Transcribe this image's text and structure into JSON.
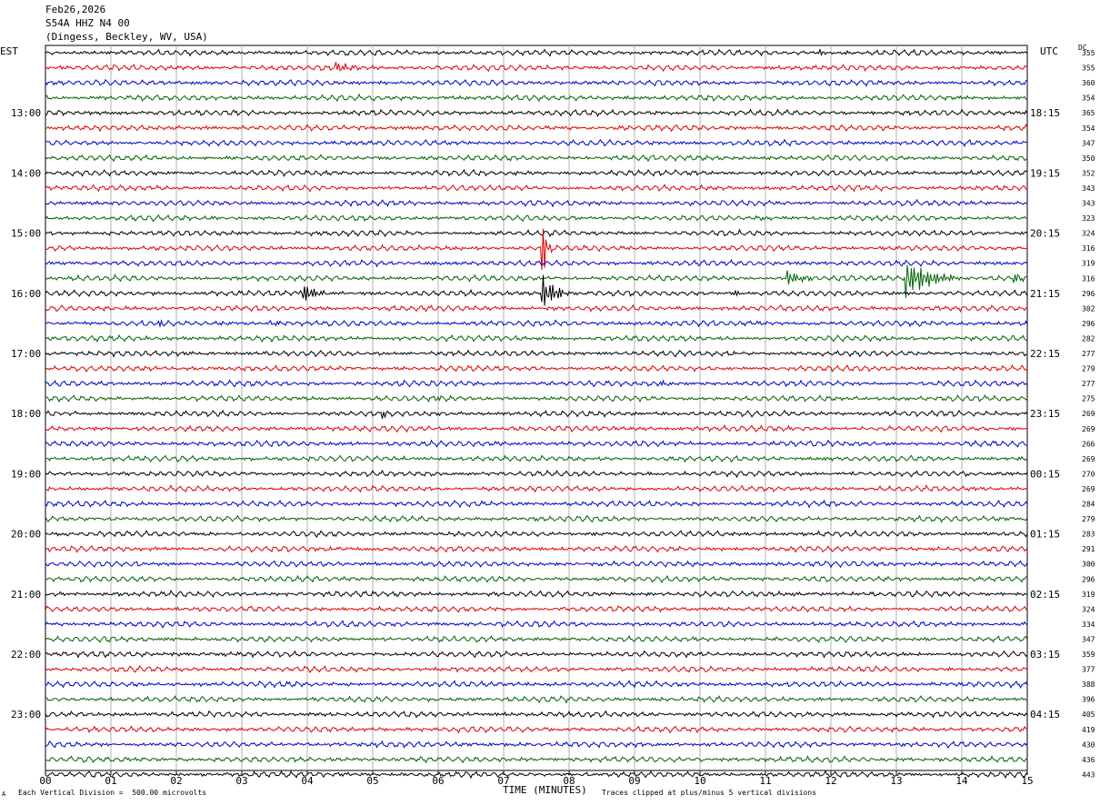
{
  "header": {
    "date": "Feb26,2026",
    "channel": "S54A HHZ N4 00",
    "location": "(Dingess, Beckley, WV, USA)"
  },
  "left_axis_label": "EST",
  "right_axis_label": "UTC",
  "dc_label": "DC",
  "footer": {
    "scale": "Each Vertical Division =  500.00 microvolts",
    "clip": "Traces clipped at plus/minus 5 vertical divisions",
    "mark": "A"
  },
  "colors": {
    "trace_cycle": [
      "#000000",
      "#e00000",
      "#0000c8",
      "#006400"
    ],
    "grid": "#b0b0b0"
  },
  "chart_data": {
    "type": "line",
    "xlabel": "TIME (MINUTES)",
    "xlim": [
      0,
      15
    ],
    "x_ticks": [
      "00",
      "01",
      "02",
      "03",
      "04",
      "05",
      "06",
      "07",
      "08",
      "09",
      "10",
      "11",
      "12",
      "13",
      "14",
      "15"
    ],
    "est_hour_labels": [
      "13:00",
      "14:00",
      "15:00",
      "16:00",
      "17:00",
      "18:00",
      "19:00",
      "20:00",
      "21:00",
      "22:00",
      "23:00"
    ],
    "utc_hour_labels": [
      "18:15",
      "19:15",
      "20:15",
      "21:15",
      "22:15",
      "23:15",
      "00:15",
      "01:15",
      "02:15",
      "03:15",
      "04:15"
    ],
    "dc_offsets": [
      355,
      355,
      360,
      354,
      365,
      354,
      347,
      350,
      352,
      343,
      343,
      323,
      324,
      316,
      319,
      316,
      296,
      302,
      296,
      282,
      277,
      279,
      277,
      275,
      269,
      269,
      266,
      269,
      270,
      269,
      284,
      279,
      283,
      291,
      300,
      296,
      319,
      324,
      334,
      347,
      359,
      377,
      388,
      396,
      405,
      419,
      430,
      436,
      443
    ],
    "events": [
      {
        "trace": 0,
        "minute": 11.85,
        "amp": 0.6,
        "dur": 0.1
      },
      {
        "trace": 1,
        "minute": 4.45,
        "amp": 0.9,
        "dur": 0.4
      },
      {
        "trace": 12,
        "minute": 4.3,
        "amp": 0.4,
        "dur": 0.15
      },
      {
        "trace": 13,
        "minute": 7.6,
        "amp": 6,
        "dur": 0.15
      },
      {
        "trace": 15,
        "minute": 11.35,
        "amp": 1.6,
        "dur": 0.4
      },
      {
        "trace": 15,
        "minute": 13.15,
        "amp": 4,
        "dur": 1.0
      },
      {
        "trace": 15,
        "minute": 14.8,
        "amp": 1.2,
        "dur": 0.3
      },
      {
        "trace": 16,
        "minute": 3.9,
        "amp": 3,
        "dur": 0.5
      },
      {
        "trace": 16,
        "minute": 7.6,
        "amp": 4,
        "dur": 0.6
      },
      {
        "trace": 16,
        "minute": 10.55,
        "amp": 0.7,
        "dur": 0.3
      },
      {
        "trace": 18,
        "minute": 1.05,
        "amp": 0.5,
        "dur": 0.2
      },
      {
        "trace": 18,
        "minute": 1.75,
        "amp": 0.9,
        "dur": 0.3
      },
      {
        "trace": 18,
        "minute": 3.45,
        "amp": 0.7,
        "dur": 0.3
      },
      {
        "trace": 22,
        "minute": 9.4,
        "amp": 0.5,
        "dur": 0.3
      },
      {
        "trace": 23,
        "minute": 6.0,
        "amp": 0.6,
        "dur": 0.3
      },
      {
        "trace": 24,
        "minute": 5.15,
        "amp": 1.2,
        "dur": 0.2
      }
    ]
  }
}
